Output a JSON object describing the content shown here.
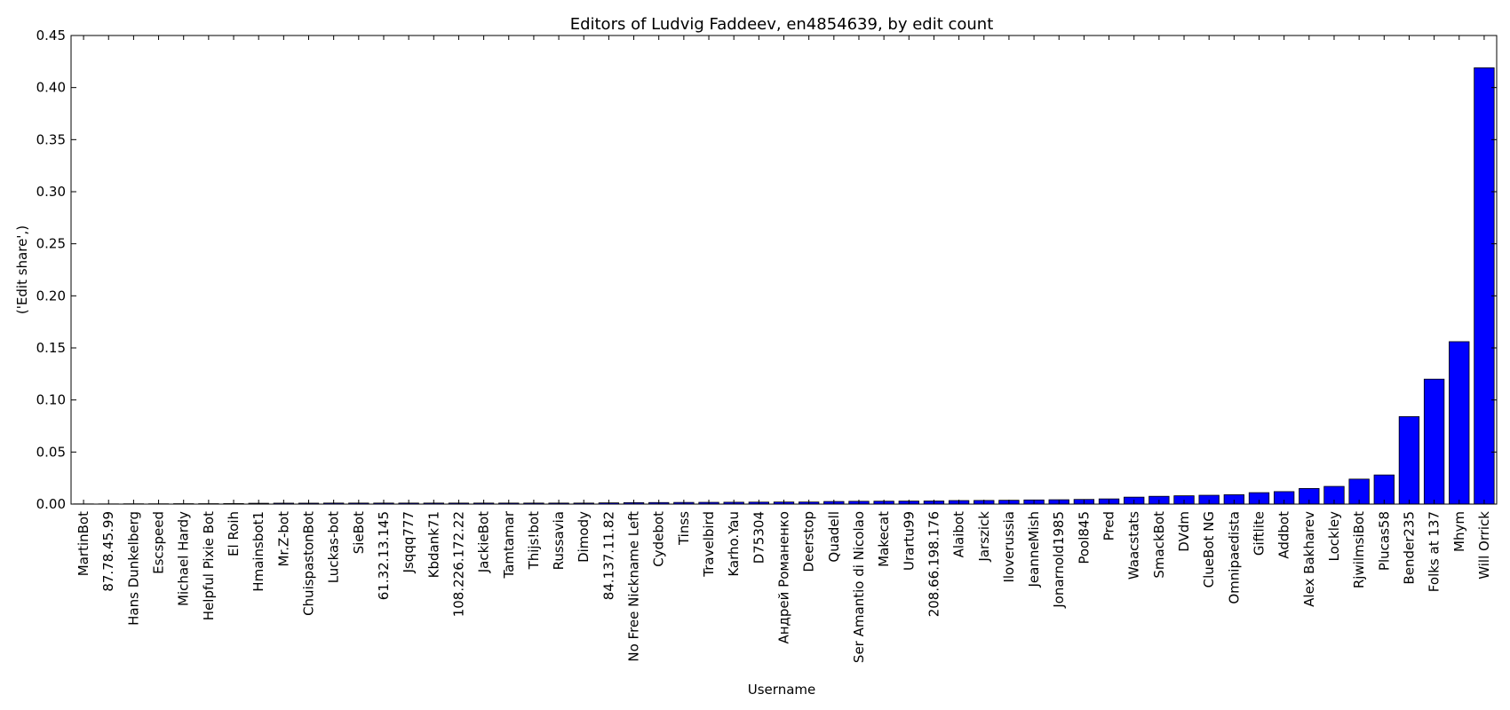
{
  "chart_data": {
    "type": "bar",
    "title": "Editors of Ludvig Faddeev, en4854639, by edit count",
    "xlabel": "Username",
    "ylabel": "('Edit share',)",
    "ylim": [
      0,
      0.45
    ],
    "yticks": [
      "0.00",
      "0.05",
      "0.10",
      "0.15",
      "0.20",
      "0.25",
      "0.30",
      "0.35",
      "0.40",
      "0.45"
    ],
    "grid": false,
    "bar_color": "#0000ff",
    "categories": [
      "MartinBot",
      "87.78.45.99",
      "Hans Dunkelberg",
      "Escspeed",
      "Michael Hardy",
      "Helpful Pixie Bot",
      "El Roih",
      "Hmainsbot1",
      "Mr.Z-bot",
      "ChuispastonBot",
      "Luckas-bot",
      "SieBot",
      "61.32.13.145",
      "Jsqqq777",
      "Kbdank71",
      "108.226.172.22",
      "JackieBot",
      "Tamtamar",
      "Thijs!bot",
      "Russavia",
      "Dimody",
      "84.137.11.82",
      "No Free Nickname Left",
      "Cydebot",
      "Tinss",
      "Travelbird",
      "Karho.Yau",
      "D75304",
      "Андрей Романенко",
      "Deerstop",
      "Quadell",
      "Ser Amantio di Nicolao",
      "Makecat",
      "Urartu99",
      "208.66.198.176",
      "Alaibot",
      "Jarszick",
      "Iloverussia",
      "JeanneMish",
      "Jonarnold1985",
      "Pool845",
      "Pred",
      "Waacstats",
      "SmackBot",
      "DVdm",
      "ClueBot NG",
      "Omnipaedista",
      "Giftlite",
      "Addbot",
      "Alex Bakharev",
      "Lockley",
      "RjwilmsiBot",
      "Plucas58",
      "Bender235",
      "Folks at 137",
      "Mhym",
      "Will Orrick"
    ],
    "values": [
      0.0002,
      0.0002,
      0.0003,
      0.0003,
      0.0004,
      0.0004,
      0.0005,
      0.0008,
      0.0009,
      0.0009,
      0.001,
      0.001,
      0.001,
      0.001,
      0.001,
      0.001,
      0.001,
      0.001,
      0.001,
      0.001,
      0.001,
      0.0012,
      0.0014,
      0.0015,
      0.0016,
      0.0017,
      0.0018,
      0.0019,
      0.002,
      0.002,
      0.0025,
      0.0027,
      0.0028,
      0.0029,
      0.003,
      0.0034,
      0.0035,
      0.0037,
      0.004,
      0.0042,
      0.0045,
      0.005,
      0.0067,
      0.0075,
      0.008,
      0.0085,
      0.009,
      0.011,
      0.012,
      0.015,
      0.017,
      0.024,
      0.028,
      0.084,
      0.12,
      0.156,
      0.419
    ]
  }
}
